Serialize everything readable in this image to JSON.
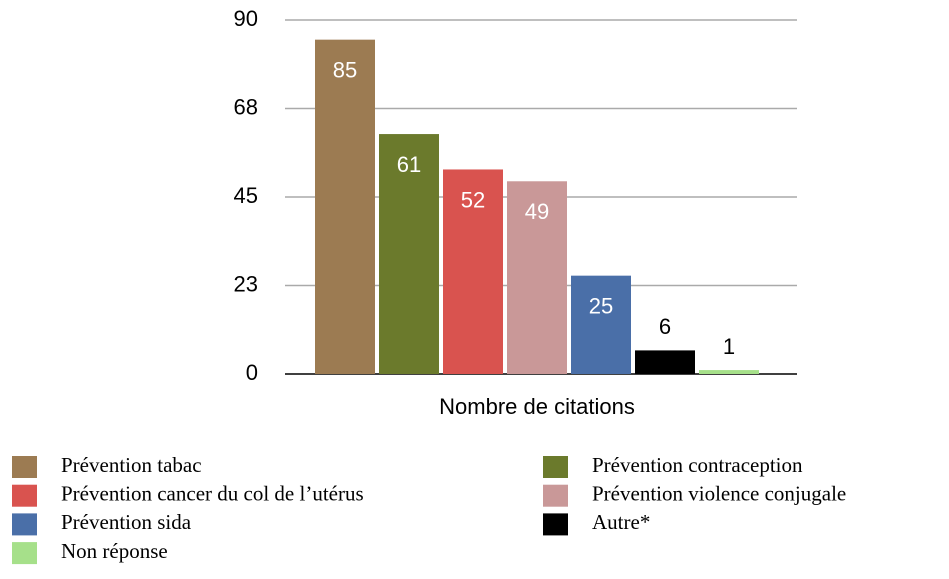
{
  "chart_data": {
    "type": "bar",
    "categories": [
      "Nombre de citations"
    ],
    "series": [
      {
        "name": "Prévention tabac",
        "color": "#9c7b52",
        "values": [
          85
        ]
      },
      {
        "name": "Prévention contraception",
        "color": "#6b7a2c",
        "values": [
          61
        ]
      },
      {
        "name": "Prévention cancer du col de l’utérus",
        "color": "#d9534f",
        "values": [
          52
        ]
      },
      {
        "name": "Prévention violence conjugale",
        "color": "#c99898",
        "values": [
          49
        ]
      },
      {
        "name": "Prévention sida",
        "color": "#4a6fa8",
        "values": [
          25
        ]
      },
      {
        "name": "Autre*",
        "color": "#000000",
        "values": [
          6
        ]
      },
      {
        "name": "Non réponse",
        "color": "#a6e08a",
        "values": [
          1
        ]
      }
    ],
    "ylim": [
      0,
      90
    ],
    "yticks": [
      0,
      {
        "value": 22.5,
        "label": "23"
      },
      45,
      {
        "value": 67.5,
        "label": "68"
      },
      90
    ],
    "grid": true
  }
}
